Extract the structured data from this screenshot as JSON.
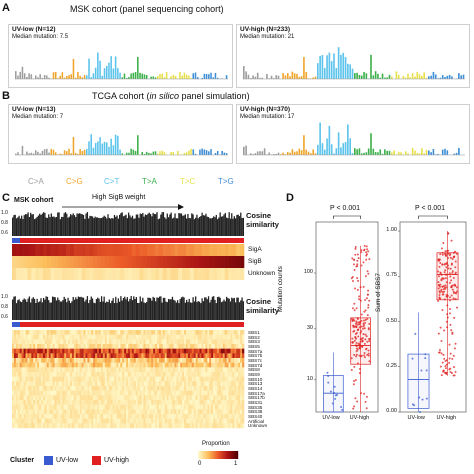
{
  "panels": {
    "A": {
      "letter": "A",
      "title": "MSK cohort (panel sequencing cohort)"
    },
    "B": {
      "letter": "B",
      "title_pre": "TCGA cohort (",
      "title_ital": "in silico",
      "title_post": " panel simulation)"
    },
    "C": {
      "letter": "C"
    },
    "D": {
      "letter": "D"
    }
  },
  "spectra": [
    {
      "group": "UV-low (N=12)",
      "median": "Median mutation: 7.5"
    },
    {
      "group": "UV-high (N=233)",
      "median": "Median mutation: 21"
    },
    {
      "group": "UV-low (N=13)",
      "median": "Median mutation: 7"
    },
    {
      "group": "UV-high (N=370)",
      "median": "Median mutation: 17"
    }
  ],
  "mutation_types": [
    {
      "label": "C>A",
      "color": "#9e9e9e"
    },
    {
      "label": "C>G",
      "color": "#f0a52a"
    },
    {
      "label": "C>T",
      "color": "#5bc3ec"
    },
    {
      "label": "T>A",
      "color": "#3cb04a"
    },
    {
      "label": "T>C",
      "color": "#e8e04a"
    },
    {
      "label": "T>G",
      "color": "#3f8fd8"
    }
  ],
  "heatmap": {
    "cohort_label": "MSK cohort",
    "arrow_label": "High SigB weight",
    "cosine_label_1": "Cosine",
    "cosine_label_2": "similarity",
    "yticks_top": [
      "1.0",
      "0.8",
      "0.6"
    ],
    "yticks_mid": [
      "1.0",
      "0.8",
      "0.6"
    ],
    "sig_rows": [
      "SigA",
      "SigB",
      "Unknown"
    ],
    "sbs_rows": [
      "SBS1",
      "SBS2",
      "SBS3",
      "SBS5",
      "SBS7a",
      "SBS7b",
      "SBS7c",
      "SBS7d",
      "SBS8",
      "SBS9",
      "SBS10",
      "SBS13",
      "SBS14",
      "SBS17a",
      "SBS17b",
      "SBS31",
      "SBS35",
      "SBS38",
      "SBS40",
      "Artificial",
      "Unknown"
    ],
    "proportion_label": "Proportion",
    "proportion_min": "0",
    "proportion_max": "1",
    "cluster_label": "Cluster",
    "cluster_items": [
      {
        "label": "UV-low",
        "color": "#3a5bd0"
      },
      {
        "label": "UV-high",
        "color": "#e02020"
      }
    ]
  },
  "chart_data": [
    {
      "type": "box",
      "ylabel": "Mutation counts",
      "scale": "log",
      "yticks": [
        10,
        30,
        100
      ],
      "ylim": [
        5,
        300
      ],
      "categories": [
        "UV-low",
        "UV-high"
      ],
      "pvalue": "P < 0.001",
      "series": [
        {
          "name": "UV-low",
          "q1": 5,
          "median": 7.5,
          "q3": 11,
          "whisker_low": 5,
          "whisker_high": 18
        },
        {
          "name": "UV-high",
          "q1": 14,
          "median": 21,
          "q3": 38,
          "whisker_low": 5,
          "whisker_high": 180
        }
      ]
    },
    {
      "type": "box",
      "ylabel": "Sum of SBS7",
      "yticks": [
        0.0,
        0.25,
        0.5,
        0.75,
        1.0
      ],
      "yticklabels": [
        "0.00",
        "0.25",
        "0.50",
        "0.75",
        "1.00"
      ],
      "ylim": [
        0,
        1.05
      ],
      "categories": [
        "UV-low",
        "UV-high"
      ],
      "pvalue": "P < 0.001",
      "series": [
        {
          "name": "UV-low",
          "q1": 0.02,
          "median": 0.18,
          "q3": 0.32,
          "whisker_low": 0.0,
          "whisker_high": 0.55
        },
        {
          "name": "UV-high",
          "q1": 0.62,
          "median": 0.76,
          "q3": 0.88,
          "whisker_low": 0.2,
          "whisker_high": 1.0
        }
      ]
    }
  ]
}
